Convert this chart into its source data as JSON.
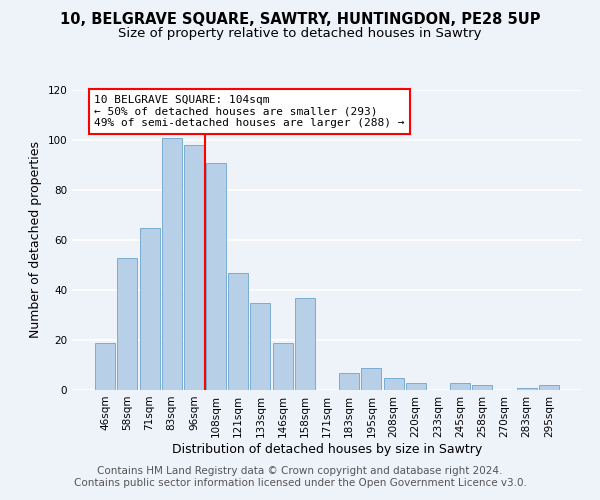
{
  "title": "10, BELGRAVE SQUARE, SAWTRY, HUNTINGDON, PE28 5UP",
  "subtitle": "Size of property relative to detached houses in Sawtry",
  "xlabel": "Distribution of detached houses by size in Sawtry",
  "ylabel": "Number of detached properties",
  "bar_labels": [
    "46sqm",
    "58sqm",
    "71sqm",
    "83sqm",
    "96sqm",
    "108sqm",
    "121sqm",
    "133sqm",
    "146sqm",
    "158sqm",
    "171sqm",
    "183sqm",
    "195sqm",
    "208sqm",
    "220sqm",
    "233sqm",
    "245sqm",
    "258sqm",
    "270sqm",
    "283sqm",
    "295sqm"
  ],
  "bar_values": [
    19,
    53,
    65,
    101,
    98,
    91,
    47,
    35,
    19,
    37,
    0,
    7,
    9,
    5,
    3,
    0,
    3,
    2,
    0,
    1,
    2
  ],
  "bar_color": "#b8cfe8",
  "bar_edge_color": "#7aadd4",
  "annotation_title": "10 BELGRAVE SQUARE: 104sqm",
  "annotation_line1": "← 50% of detached houses are smaller (293)",
  "annotation_line2": "49% of semi-detached houses are larger (288) →",
  "vline_color": "red",
  "vline_pos": 4.5,
  "ylim": [
    0,
    120
  ],
  "yticks": [
    0,
    20,
    40,
    60,
    80,
    100,
    120
  ],
  "footer1": "Contains HM Land Registry data © Crown copyright and database right 2024.",
  "footer2": "Contains public sector information licensed under the Open Government Licence v3.0.",
  "bg_color": "#eef2f9",
  "grid_color": "#ffffff",
  "title_fontsize": 10.5,
  "subtitle_fontsize": 9.5,
  "axis_label_fontsize": 9,
  "tick_fontsize": 7.5,
  "footer_fontsize": 7.5
}
